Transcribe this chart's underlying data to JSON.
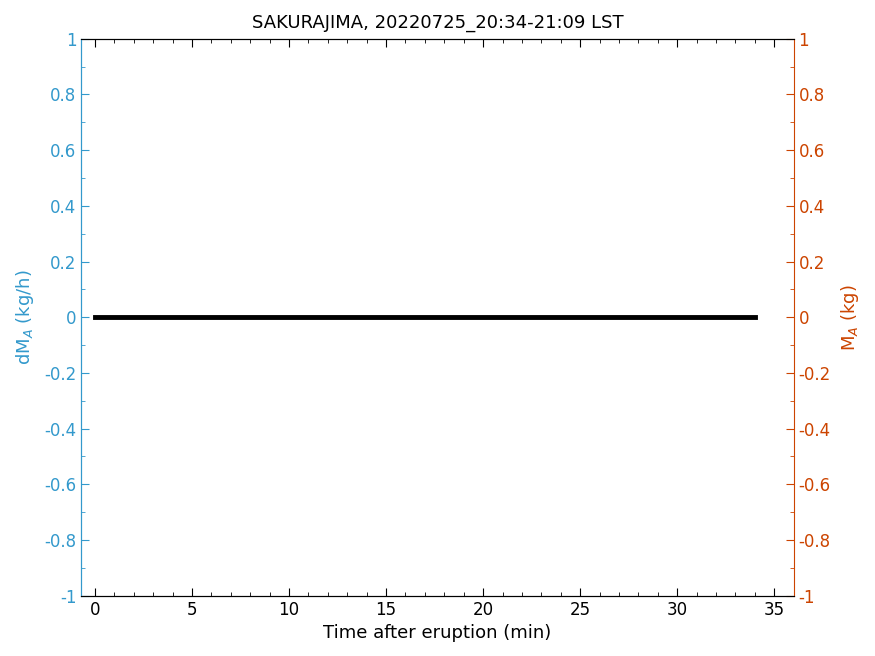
{
  "title": "SAKURAJIMA, 20220725_20:34-21:09 LST",
  "title_fontsize": 13,
  "xlabel": "Time after eruption (min)",
  "ylabel_left": "dM$_A$ (kg/h)",
  "ylabel_right": "M$_A$ (kg)",
  "left_color": "#3399CC",
  "right_color": "#CC4400",
  "line_color": "#000000",
  "line_width": 3.5,
  "xlim": [
    -0.7,
    36
  ],
  "ylim": [
    -1,
    1
  ],
  "xticks": [
    0,
    5,
    10,
    15,
    20,
    25,
    30,
    35
  ],
  "yticks": [
    -1,
    -0.8,
    -0.6,
    -0.4,
    -0.2,
    0,
    0.2,
    0.4,
    0.6,
    0.8,
    1
  ],
  "x_data": [
    0,
    34
  ],
  "y_data": [
    0,
    0
  ],
  "figsize": [
    8.75,
    6.56
  ],
  "dpi": 100,
  "background_color": "#ffffff",
  "tick_direction": "in",
  "xlabel_fontsize": 13,
  "ylabel_fontsize": 13,
  "tick_label_fontsize": 12
}
